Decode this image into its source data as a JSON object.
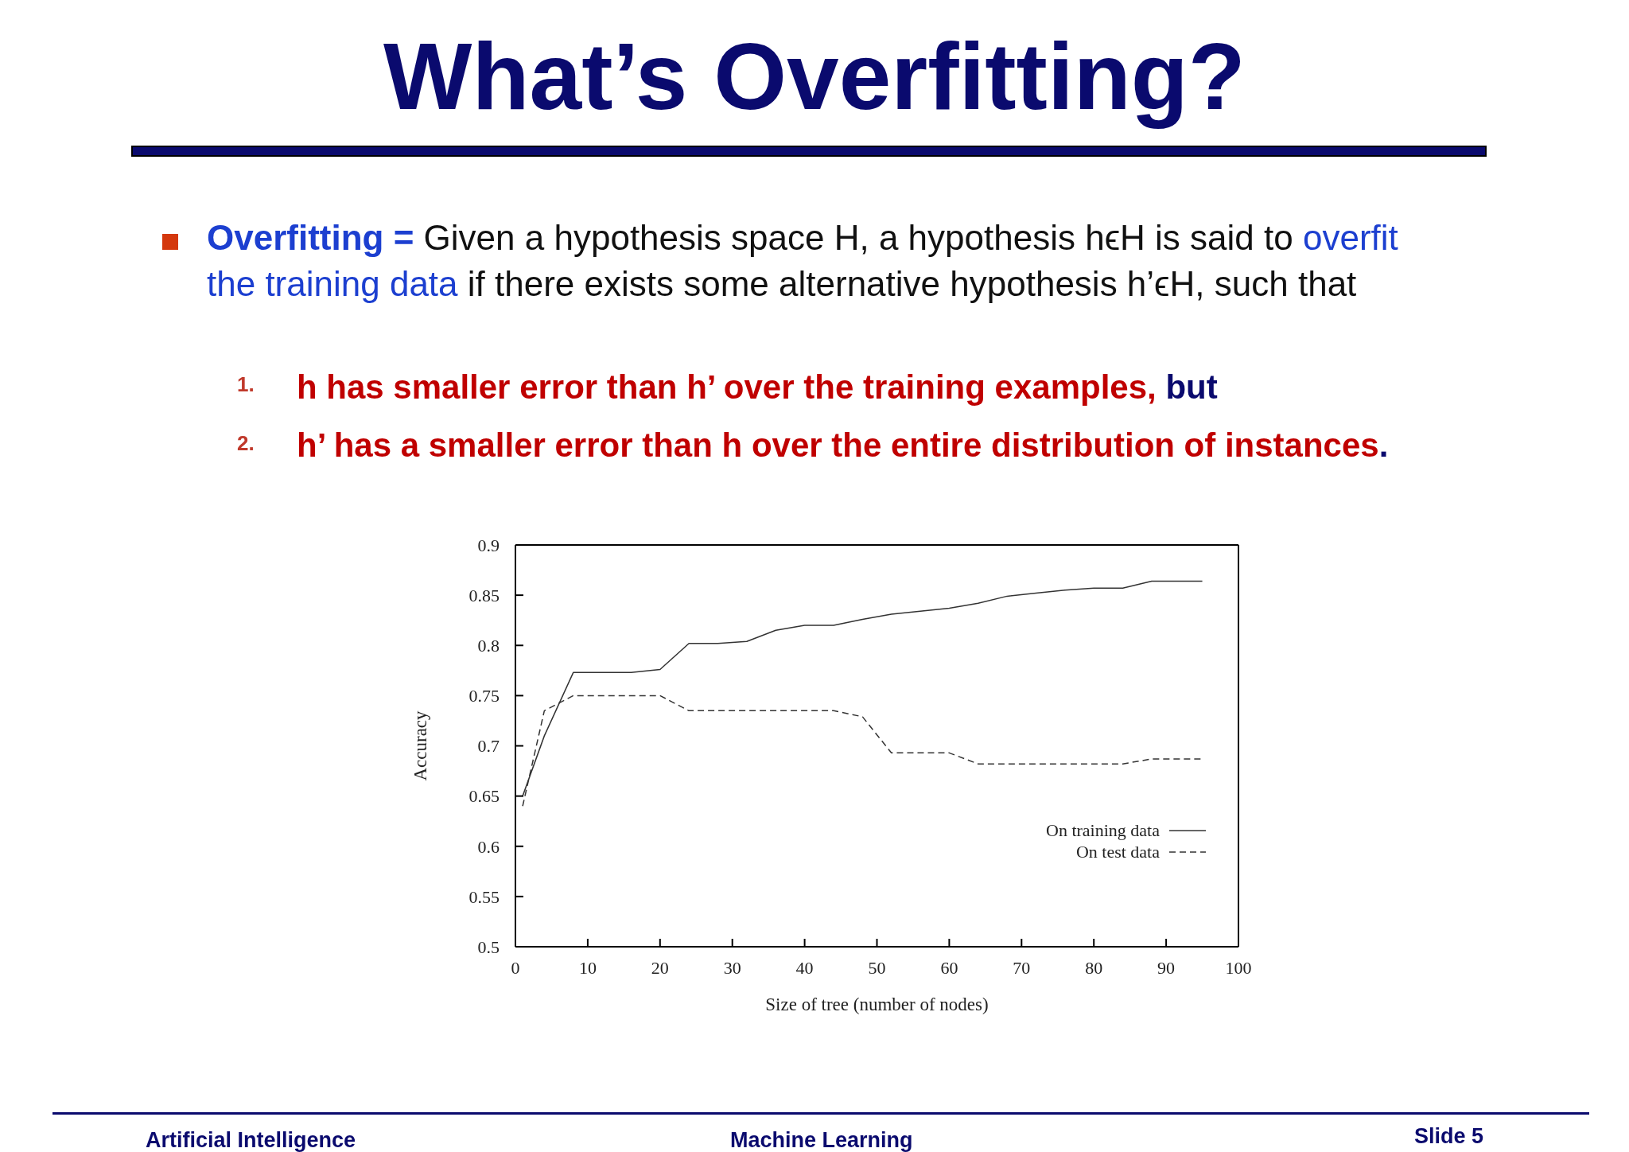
{
  "chart_data": {
    "type": "line",
    "title": "What’s Overfitting?",
    "xlabel": "Size of tree (number of nodes)",
    "ylabel": "Accuracy",
    "xlim": [
      0,
      100
    ],
    "xticks": [
      0,
      10,
      20,
      30,
      40,
      50,
      60,
      70,
      80,
      90,
      100
    ],
    "ylim": [
      0.5,
      0.9
    ],
    "yticks": [
      0.5,
      0.55,
      0.6,
      0.65,
      0.7,
      0.75,
      0.8,
      0.85,
      0.9
    ],
    "grid": false,
    "legend": "bottom right",
    "marker": "none",
    "series": [
      {
        "name": "On training data",
        "color": "#333333",
        "line_style": "solid",
        "x": [
          1,
          4,
          8,
          16,
          20,
          24,
          28,
          32,
          36,
          40,
          44,
          48,
          52,
          56,
          60,
          64,
          68,
          72,
          76,
          80,
          84,
          88,
          95
        ],
        "values": [
          0.65,
          0.71,
          0.773,
          0.773,
          0.776,
          0.802,
          0.802,
          0.804,
          0.815,
          0.82,
          0.82,
          0.826,
          0.831,
          0.834,
          0.837,
          0.842,
          0.849,
          0.852,
          0.855,
          0.857,
          0.857,
          0.864,
          0.864
        ]
      },
      {
        "name": "On test data",
        "color": "#333333",
        "line_style": "dashed",
        "x": [
          1,
          4,
          8,
          20,
          24,
          44,
          48,
          52,
          60,
          64,
          84,
          88,
          95
        ],
        "values": [
          0.64,
          0.735,
          0.75,
          0.75,
          0.735,
          0.735,
          0.729,
          0.693,
          0.693,
          0.682,
          0.682,
          0.687,
          0.687
        ]
      }
    ],
    "annotations": [
      "Overfitting =",
      "Given a hypothesis space H, a hypothesis hϵH is said to",
      "overfit the training data",
      "if there exists some alternative hypothesis h’ϵH, such that",
      "1.",
      "h has smaller error than h’ over the training examples,",
      "but",
      "2.",
      "h’ has a smaller error than h over the entire distribution of instances",
      ".",
      "Artificial Intelligence",
      "Machine Learning",
      "Slide 5"
    ]
  }
}
